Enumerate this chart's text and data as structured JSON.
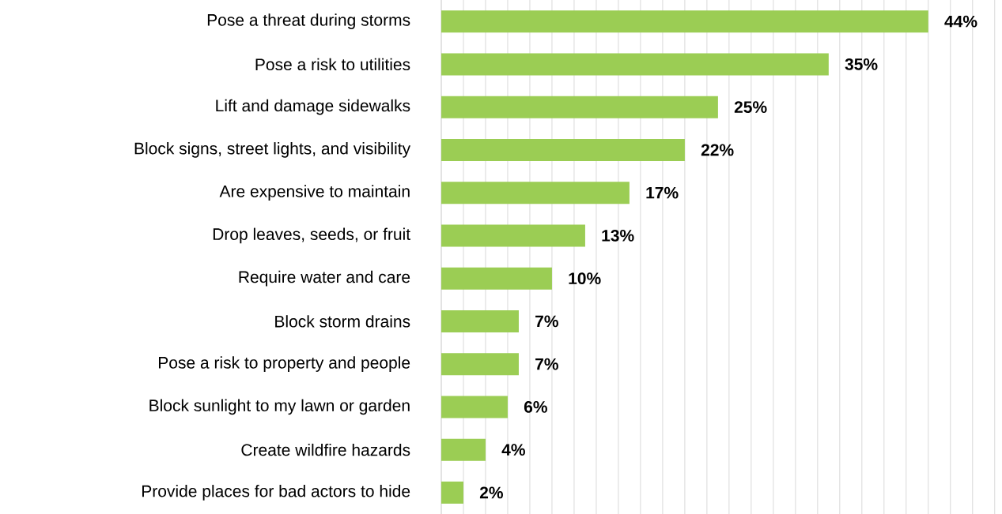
{
  "chart_data": {
    "type": "bar",
    "orientation": "horizontal",
    "categories": [
      "Pose a threat during storms",
      "Pose a risk to utilities",
      "Lift and damage sidewalks",
      "Block signs, street lights, and visibility",
      "Are expensive to maintain",
      "Drop leaves, seeds, or fruit",
      "Require water and care",
      "Block storm drains",
      "Pose a risk to property and people",
      "Block sunlight to my lawn or garden",
      "Create wildfire hazards",
      "Provide places for bad actors to hide"
    ],
    "values": [
      44,
      35,
      25,
      22,
      17,
      13,
      10,
      7,
      7,
      6,
      4,
      2
    ],
    "value_labels": [
      "44%",
      "35%",
      "25%",
      "22%",
      "17%",
      "13%",
      "10%",
      "7%",
      "7%",
      "6%",
      "4%",
      "2%"
    ],
    "color": "#9bcd54",
    "grid": "x",
    "tick_labels": "y"
  }
}
